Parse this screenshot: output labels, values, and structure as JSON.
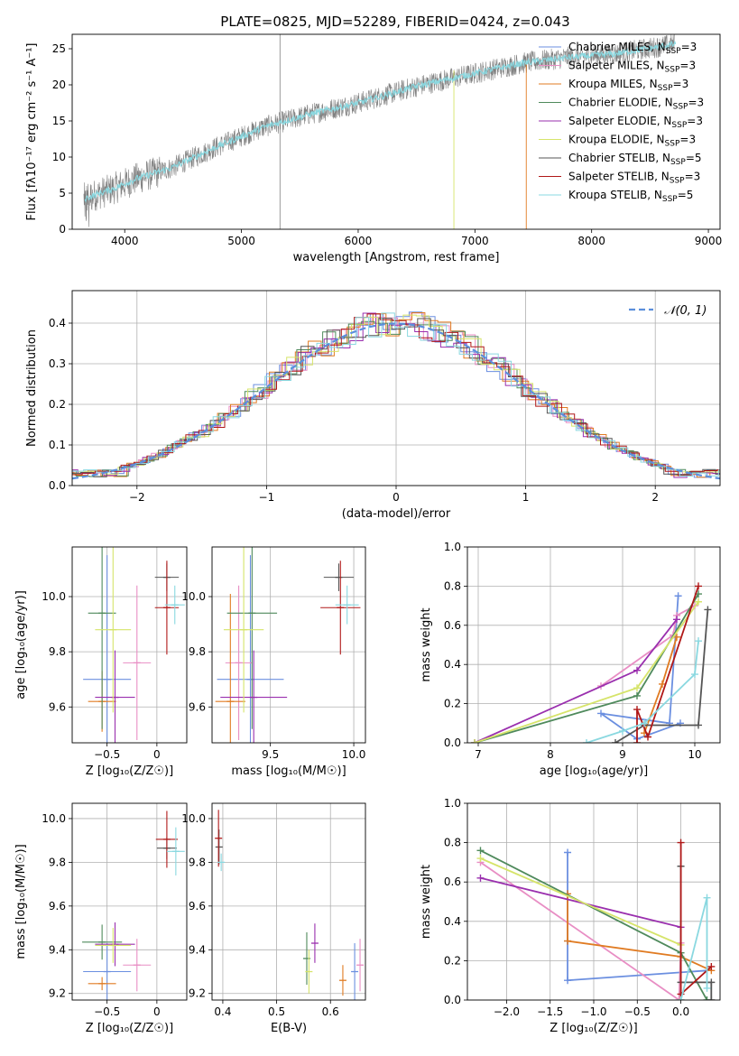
{
  "figure_title": "PLATE=0825, MJD=52289, FIBERID=0424, z=0.043",
  "colors": {
    "c1": "#6b8fe0",
    "c2": "#e88ec4",
    "c3": "#e07b22",
    "c4": "#4f8a5c",
    "c5": "#9a2fae",
    "c6": "#d6e46a",
    "c7": "#555555",
    "c8": "#b01818",
    "c9": "#8ad8e0",
    "data": "#808080",
    "gauss": "#5b8fdc",
    "grid": "#b0b0b0"
  },
  "legend": [
    {
      "label": "Chabrier MILES, N",
      "sub": "SSP",
      "tail": "=3",
      "color": "c1"
    },
    {
      "label": "Salpeter MILES, N",
      "sub": "SSP",
      "tail": "=3",
      "color": "c2"
    },
    {
      "label": "Kroupa MILES, N",
      "sub": "SSP",
      "tail": "=3",
      "color": "c3"
    },
    {
      "label": "Chabrier ELODIE, N",
      "sub": "SSP",
      "tail": "=3",
      "color": "c4"
    },
    {
      "label": "Salpeter ELODIE, N",
      "sub": "SSP",
      "tail": "=3",
      "color": "c5"
    },
    {
      "label": "Kroupa ELODIE, N",
      "sub": "SSP",
      "tail": "=3",
      "color": "c6"
    },
    {
      "label": "Chabrier STELIB, N",
      "sub": "SSP",
      "tail": "=5",
      "color": "c7"
    },
    {
      "label": "Salpeter STELIB, N",
      "sub": "SSP",
      "tail": "=3",
      "color": "c8"
    },
    {
      "label": "Kroupa STELIB, N",
      "sub": "SSP",
      "tail": "=5",
      "color": "c9"
    }
  ],
  "chart_data": [
    {
      "id": "spectrum",
      "type": "line",
      "xlabel": "wavelength [Angstrom, rest frame]",
      "ylabel": "Flux [fλ10⁻¹⁷ erg cm⁻² s⁻¹ A⁻¹]",
      "xlim": [
        3550,
        9100
      ],
      "ylim": [
        0,
        27
      ],
      "xticks": [
        4000,
        5000,
        6000,
        7000,
        8000,
        9000
      ],
      "yticks": [
        0,
        5,
        10,
        15,
        20,
        25
      ],
      "continuum": [
        [
          3650,
          4.2
        ],
        [
          3900,
          5.6
        ],
        [
          4100,
          7.0
        ],
        [
          4400,
          8.5
        ],
        [
          4800,
          11.5
        ],
        [
          5200,
          14.2
        ],
        [
          5600,
          16.0
        ],
        [
          6000,
          17.5
        ],
        [
          6500,
          19.8
        ],
        [
          7000,
          21.6
        ],
        [
          7400,
          23.0
        ],
        [
          7800,
          23.8
        ],
        [
          8200,
          24.3
        ],
        [
          8700,
          25.6
        ]
      ]
    },
    {
      "id": "residuals",
      "type": "histogram",
      "xlabel": "(data-model)/error",
      "ylabel": "Normed distribution",
      "xlim": [
        -2.5,
        2.5
      ],
      "ylim": [
        0,
        0.48
      ],
      "xticks": [
        -2,
        -1,
        0,
        1,
        2
      ],
      "yticks": [
        0.0,
        0.1,
        0.2,
        0.3,
        0.4
      ],
      "gauss_label": "𝒩(0, 1)"
    },
    {
      "id": "age_vs_Z",
      "type": "scatter",
      "xlabel": "Z [log₁₀(Z/Z☉)]",
      "ylabel": "age  [log₁₀(age/yr)]",
      "xlim": [
        -0.85,
        0.3
      ],
      "ylim": [
        9.47,
        10.18
      ],
      "xticks": [
        -0.5,
        0.0
      ],
      "yticks": [
        9.6,
        9.8,
        10.0
      ],
      "points": [
        {
          "x": -0.5,
          "xerr": 0.24,
          "y": 9.7,
          "yerr": 0.45,
          "color": "c1"
        },
        {
          "x": -0.2,
          "xerr": 0.14,
          "y": 9.76,
          "yerr": 0.28,
          "color": "c2"
        },
        {
          "x": -0.55,
          "xerr": 0.14,
          "y": 9.62,
          "yerr": 0.11,
          "color": "c3"
        },
        {
          "x": -0.55,
          "xerr": 0.14,
          "y": 9.94,
          "yerr": 0.42,
          "color": "c4"
        },
        {
          "x": -0.42,
          "xerr": 0.2,
          "y": 9.635,
          "yerr": 0.17,
          "color": "c5"
        },
        {
          "x": -0.44,
          "xerr": 0.18,
          "y": 9.88,
          "yerr": 0.3,
          "color": "c6"
        },
        {
          "x": 0.1,
          "xerr": 0.12,
          "y": 10.07,
          "yerr": 0.05,
          "color": "c7"
        },
        {
          "x": 0.1,
          "xerr": 0.12,
          "y": 9.96,
          "yerr": 0.17,
          "color": "c8"
        },
        {
          "x": 0.18,
          "xerr": 0.1,
          "y": 9.97,
          "yerr": 0.07,
          "color": "c9"
        }
      ]
    },
    {
      "id": "age_vs_mass",
      "type": "scatter",
      "xlabel": "mass [log₁₀(M/M☉)]",
      "ylabel": "",
      "xlim": [
        9.15,
        10.07
      ],
      "ylim": [
        9.47,
        10.18
      ],
      "xticks": [
        9.5,
        10.0
      ],
      "yticks": [
        9.6,
        9.8,
        10.0
      ],
      "points": [
        {
          "x": 9.38,
          "xerr": 0.2,
          "y": 9.7,
          "yerr": 0.45,
          "color": "c1"
        },
        {
          "x": 9.31,
          "xerr": 0.08,
          "y": 9.76,
          "yerr": 0.28,
          "color": "c2"
        },
        {
          "x": 9.26,
          "xerr": 0.09,
          "y": 9.62,
          "yerr": 0.39,
          "color": "c3"
        },
        {
          "x": 9.39,
          "xerr": 0.15,
          "y": 9.94,
          "yerr": 0.42,
          "color": "c4"
        },
        {
          "x": 9.4,
          "xerr": 0.2,
          "y": 9.635,
          "yerr": 0.17,
          "color": "c5"
        },
        {
          "x": 9.34,
          "xerr": 0.12,
          "y": 9.88,
          "yerr": 0.3,
          "color": "c6"
        },
        {
          "x": 9.91,
          "xerr": 0.09,
          "y": 10.07,
          "yerr": 0.05,
          "color": "c7"
        },
        {
          "x": 9.92,
          "xerr": 0.12,
          "y": 9.96,
          "yerr": 0.17,
          "color": "c8"
        },
        {
          "x": 9.96,
          "xerr": 0.07,
          "y": 9.97,
          "yerr": 0.07,
          "color": "c9"
        }
      ]
    },
    {
      "id": "weight_vs_age",
      "type": "line",
      "xlabel": "age  [log₁₀(age/yr)]",
      "ylabel": "mass weight",
      "xlim": [
        6.85,
        10.35
      ],
      "ylim": [
        0,
        1
      ],
      "xticks": [
        7,
        8,
        9,
        10
      ],
      "yticks": [
        0.0,
        0.2,
        0.4,
        0.6,
        0.8,
        1.0
      ],
      "series": [
        {
          "color": "c1",
          "x": [
            9.77,
            9.65,
            8.7,
            9.2,
            9.8
          ],
          "y": [
            0.75,
            0.1,
            0.15,
            0.02,
            0.1
          ]
        },
        {
          "color": "c2",
          "x": [
            8.7,
            9.7,
            9.75,
            10.0
          ],
          "y": [
            0.29,
            0.55,
            0.65,
            0.7
          ]
        },
        {
          "color": "c3",
          "x": [
            9.3,
            9.55,
            9.75
          ],
          "y": [
            0.05,
            0.3,
            0.54
          ]
        },
        {
          "color": "c4",
          "x": [
            6.95,
            9.2,
            10.05
          ],
          "y": [
            0.0,
            0.24,
            0.76
          ]
        },
        {
          "color": "c5",
          "x": [
            6.95,
            9.2,
            9.75
          ],
          "y": [
            0.0,
            0.37,
            0.63
          ]
        },
        {
          "color": "c6",
          "x": [
            6.95,
            9.2,
            10.05
          ],
          "y": [
            0.0,
            0.28,
            0.72
          ]
        },
        {
          "color": "c7",
          "x": [
            8.9,
            9.3,
            10.05,
            10.18
          ],
          "y": [
            0.0,
            0.09,
            0.09,
            0.68
          ]
        },
        {
          "color": "c8",
          "x": [
            9.2,
            9.2,
            9.35,
            10.05
          ],
          "y": [
            0.0,
            0.17,
            0.03,
            0.8
          ]
        },
        {
          "color": "c9",
          "x": [
            8.5,
            9.0,
            9.3,
            10.0,
            10.05
          ],
          "y": [
            0.0,
            0.06,
            0.1,
            0.35,
            0.52
          ]
        }
      ]
    },
    {
      "id": "mass_vs_Z",
      "type": "scatter",
      "xlabel": "Z [log₁₀(Z/Z☉)]",
      "ylabel": "mass [log₁₀(M/M☉)]",
      "xlim": [
        -0.85,
        0.3
      ],
      "ylim": [
        9.17,
        10.07
      ],
      "xticks": [
        -0.5,
        0.0
      ],
      "yticks": [
        9.2,
        9.4,
        9.6,
        9.8,
        10.0
      ],
      "points": [
        {
          "x": -0.5,
          "xerr": 0.24,
          "y": 9.3,
          "yerr": 0.13,
          "color": "c1"
        },
        {
          "x": -0.2,
          "xerr": 0.14,
          "y": 9.33,
          "yerr": 0.12,
          "color": "c2"
        },
        {
          "x": -0.55,
          "xerr": 0.14,
          "y": 9.245,
          "yerr": 0.03,
          "color": "c3"
        },
        {
          "x": -0.55,
          "xerr": 0.2,
          "y": 9.435,
          "yerr": 0.08,
          "color": "c4"
        },
        {
          "x": -0.42,
          "xerr": 0.2,
          "y": 9.425,
          "yerr": 0.1,
          "color": "c5"
        },
        {
          "x": -0.44,
          "xerr": 0.18,
          "y": 9.42,
          "yerr": 0.08,
          "color": "c6"
        },
        {
          "x": 0.1,
          "xerr": 0.1,
          "y": 9.865,
          "yerr": 0.05,
          "color": "c7"
        },
        {
          "x": 0.1,
          "xerr": 0.11,
          "y": 9.905,
          "yerr": 0.13,
          "color": "c8"
        },
        {
          "x": 0.19,
          "xerr": 0.09,
          "y": 9.85,
          "yerr": 0.11,
          "color": "c9"
        }
      ]
    },
    {
      "id": "mass_vs_ebv",
      "type": "scatter",
      "xlabel": "E(B-V)",
      "ylabel": "",
      "xlim": [
        0.38,
        0.665
      ],
      "ylim": [
        9.17,
        10.07
      ],
      "xticks": [
        0.4,
        0.5,
        0.6
      ],
      "yticks": [
        9.2,
        9.4,
        9.6,
        9.8,
        10.0
      ],
      "points": [
        {
          "x": 0.645,
          "xerr": 0.0,
          "y": 9.3,
          "yerr": 0.13,
          "color": "c1"
        },
        {
          "x": 0.655,
          "xerr": 0.0,
          "y": 9.33,
          "yerr": 0.12,
          "color": "c2"
        },
        {
          "x": 0.623,
          "xerr": 0.0,
          "y": 9.26,
          "yerr": 0.07,
          "color": "c3"
        },
        {
          "x": 0.556,
          "xerr": 0.0,
          "y": 9.36,
          "yerr": 0.12,
          "color": "c4"
        },
        {
          "x": 0.571,
          "xerr": 0.0,
          "y": 9.43,
          "yerr": 0.09,
          "color": "c5"
        },
        {
          "x": 0.56,
          "xerr": 0.0,
          "y": 9.3,
          "yerr": 0.1,
          "color": "c6"
        },
        {
          "x": 0.393,
          "xerr": 0.0,
          "y": 9.87,
          "yerr": 0.08,
          "color": "c7"
        },
        {
          "x": 0.392,
          "xerr": 0.0,
          "y": 9.91,
          "yerr": 0.13,
          "color": "c8"
        },
        {
          "x": 0.397,
          "xerr": 0.0,
          "y": 9.8,
          "yerr": 0.04,
          "color": "c9"
        }
      ]
    },
    {
      "id": "weight_vs_Z",
      "type": "line",
      "xlabel": "Z [log₁₀(Z/Z☉)]",
      "ylabel": "mass weight",
      "xlim": [
        -2.45,
        0.45
      ],
      "ylim": [
        0,
        1
      ],
      "xticks": [
        -2.0,
        -1.5,
        -1.0,
        -0.5,
        0.0
      ],
      "yticks": [
        0.0,
        0.2,
        0.4,
        0.6,
        0.8,
        1.0
      ],
      "series": [
        {
          "color": "c1",
          "x": [
            -1.3,
            -1.3,
            -1.3,
            0.3
          ],
          "y": [
            0.75,
            0.3,
            0.1,
            0.15
          ]
        },
        {
          "color": "c2",
          "x": [
            -2.3,
            -0.02,
            0.0
          ],
          "y": [
            0.7,
            0.0,
            0.29
          ]
        },
        {
          "color": "c3",
          "x": [
            -1.3,
            -1.3,
            0.0,
            0.35
          ],
          "y": [
            0.54,
            0.3,
            0.22,
            0.15
          ]
        },
        {
          "color": "c4",
          "x": [
            -2.3,
            0.0,
            0.3
          ],
          "y": [
            0.76,
            0.24,
            0.0
          ]
        },
        {
          "color": "c5",
          "x": [
            -2.3,
            0.0,
            0.0
          ],
          "y": [
            0.62,
            0.37,
            0.0
          ]
        },
        {
          "color": "c6",
          "x": [
            -2.3,
            0.0,
            0.0
          ],
          "y": [
            0.72,
            0.28,
            0.0
          ]
        },
        {
          "color": "c7",
          "x": [
            0.0,
            0.0,
            0.35,
            0.35
          ],
          "y": [
            0.68,
            0.09,
            0.09,
            0.0
          ]
        },
        {
          "color": "c8",
          "x": [
            0.0,
            0.0,
            0.35
          ],
          "y": [
            0.8,
            0.03,
            0.17
          ]
        },
        {
          "color": "c9",
          "x": [
            0.0,
            0.3,
            0.3
          ],
          "y": [
            0.0,
            0.52,
            0.06
          ]
        }
      ]
    }
  ]
}
